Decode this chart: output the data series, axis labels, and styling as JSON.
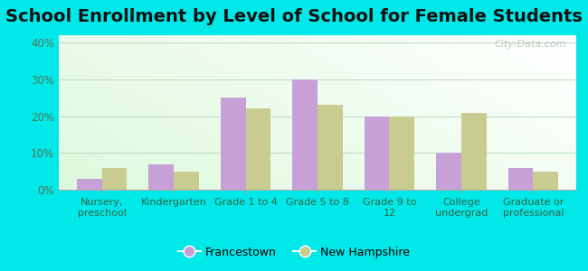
{
  "title": "School Enrollment by Level of School for Female Students",
  "categories": [
    "Nursery,\npreschool",
    "Kindergarten",
    "Grade 1 to 4",
    "Grade 5 to 8",
    "Grade 9 to\n12",
    "College\nundergrad",
    "Graduate or\nprofessional"
  ],
  "francestown": [
    3,
    7,
    25,
    30,
    20,
    10,
    6
  ],
  "new_hampshire": [
    6,
    5,
    22,
    23,
    20,
    21,
    5
  ],
  "francestown_color": "#c8a0d8",
  "new_hampshire_color": "#c8cc90",
  "background_outer": "#00e8e8",
  "ylabel_ticks": [
    "0%",
    "10%",
    "20%",
    "30%",
    "40%"
  ],
  "yticks": [
    0,
    10,
    20,
    30,
    40
  ],
  "ylim": [
    0,
    42
  ],
  "title_fontsize": 14,
  "legend_label1": "Francestown",
  "legend_label2": "New Hampshire",
  "watermark": "City-Data.com"
}
